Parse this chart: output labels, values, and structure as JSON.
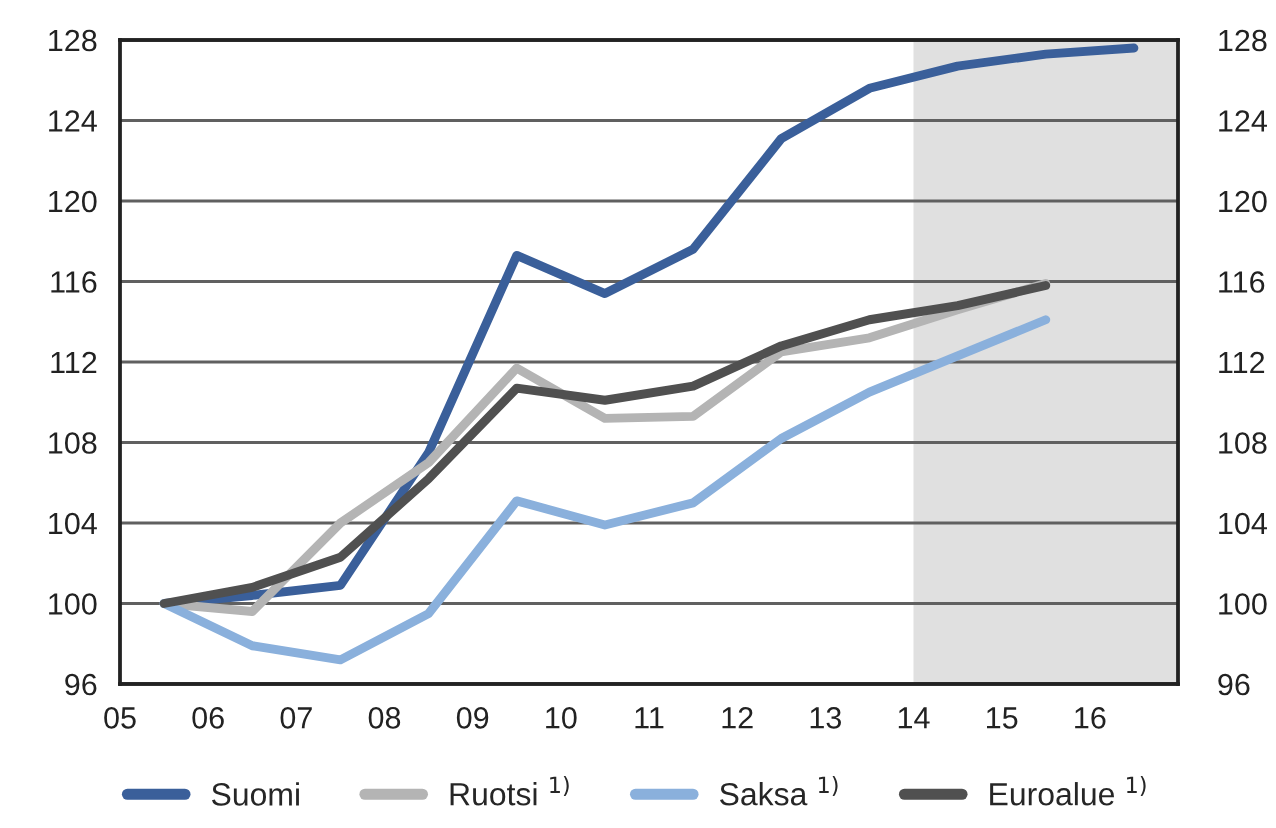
{
  "chart_data": {
    "type": "line",
    "x": [
      2005.5,
      2006.5,
      2007.5,
      2008.5,
      2009.5,
      2010.5,
      2011.5,
      2012.5,
      2013.5,
      2014.5,
      2015.5,
      2016.5
    ],
    "series": [
      {
        "name": "Suomi",
        "color": "#3a5f9a",
        "values": [
          100,
          100.4,
          100.9,
          107.5,
          117.3,
          115.4,
          117.6,
          123.1,
          125.6,
          126.7,
          127.3,
          127.6
        ]
      },
      {
        "name": "Ruotsi $^{1)}$",
        "color": "#b4b4b4",
        "values": [
          100,
          99.6,
          104.0,
          107.0,
          111.7,
          109.2,
          109.3,
          112.5,
          113.2,
          114.6,
          115.9,
          null
        ]
      },
      {
        "name": "Saksa $^{1)}$",
        "color": "#8ab0dc",
        "values": [
          100,
          97.9,
          97.2,
          99.5,
          105.1,
          103.9,
          105.0,
          108.2,
          110.5,
          112.3,
          114.1,
          null
        ]
      },
      {
        "name": "Euroalue $^{1)}$",
        "color": "#505050",
        "values": [
          100,
          100.8,
          102.3,
          106.2,
          110.7,
          110.1,
          110.8,
          112.8,
          114.1,
          114.8,
          115.8,
          null
        ]
      }
    ],
    "xlim": [
      2005,
      2017
    ],
    "xticks": [
      {
        "value": 2005,
        "label": "05"
      },
      {
        "value": 2006,
        "label": "06"
      },
      {
        "value": 2007,
        "label": "07"
      },
      {
        "value": 2008,
        "label": "08"
      },
      {
        "value": 2009,
        "label": "09"
      },
      {
        "value": 2010,
        "label": "10"
      },
      {
        "value": 2011,
        "label": "11"
      },
      {
        "value": 2012,
        "label": "12"
      },
      {
        "value": 2013,
        "label": "13"
      },
      {
        "value": 2014,
        "label": "14"
      },
      {
        "value": 2015,
        "label": "15"
      },
      {
        "value": 2016,
        "label": "16"
      }
    ],
    "ylim": [
      96,
      128
    ],
    "yticks": [
      96,
      100,
      104,
      108,
      112,
      116,
      120,
      124,
      128
    ],
    "y2lim": [
      96,
      128
    ],
    "y2ticks": [
      96,
      100,
      104,
      108,
      112,
      116,
      120,
      124,
      128
    ],
    "bands": [
      {
        "axis": "x",
        "from": 2014,
        "to": 2017,
        "color": "#e0e0e0"
      }
    ],
    "grid": "y",
    "legend": "bottom",
    "marker": "none",
    "line_style": "solid"
  }
}
